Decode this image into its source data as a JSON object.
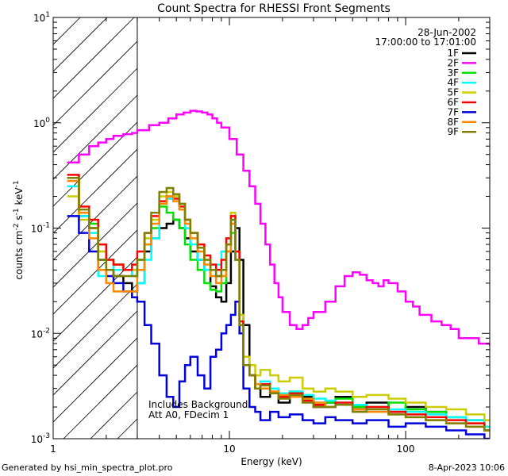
{
  "chart_data": {
    "type": "line",
    "title": "Count Spectra for RHESSI Front Segments",
    "xlabel": "Energy (keV)",
    "ylabel_parts": [
      "counts cm",
      "-2",
      " s",
      "-1",
      " keV",
      "-1"
    ],
    "xscale": "log",
    "yscale": "log",
    "xlim": [
      1,
      300
    ],
    "ylim": [
      0.001,
      10
    ],
    "x_tick_labels": [
      {
        "value": 1,
        "label": "1"
      },
      {
        "value": 10,
        "label": "10"
      },
      {
        "value": 100,
        "label": "100"
      }
    ],
    "y_tick_labels": [
      {
        "value": 0.001,
        "base": "10",
        "exp": "-3"
      },
      {
        "value": 0.01,
        "base": "10",
        "exp": "-2"
      },
      {
        "value": 0.1,
        "base": "10",
        "exp": "-1"
      },
      {
        "value": 1,
        "base": "10",
        "exp": "0"
      },
      {
        "value": 10,
        "base": "10",
        "exp": "1"
      }
    ],
    "hatched_region_keV": [
      1,
      3
    ],
    "date": "28-Jun-2002",
    "time_range": "17:00:00 to 17:01:00",
    "annotations": [
      "Includes Background",
      "Att A0, FDecim 1"
    ],
    "series": [
      {
        "name": "1F",
        "color": "#000000",
        "x": [
          1.2,
          1.4,
          1.6,
          1.8,
          2.0,
          2.2,
          2.5,
          2.8,
          3.0,
          3.3,
          3.6,
          4.0,
          4.4,
          4.8,
          5.2,
          5.6,
          6.0,
          6.6,
          7.2,
          7.8,
          8.4,
          9.0,
          9.6,
          10.2,
          10.8,
          11.4,
          12.0,
          13,
          14,
          15,
          17,
          19,
          22,
          26,
          30,
          35,
          40,
          50,
          60,
          80,
          100,
          130,
          170,
          220,
          280
        ],
        "values": [
          0.3,
          0.13,
          0.1,
          0.05,
          0.04,
          0.035,
          0.03,
          0.025,
          0.03,
          0.06,
          0.08,
          0.1,
          0.11,
          0.12,
          0.1,
          0.08,
          0.06,
          0.05,
          0.04,
          0.028,
          0.022,
          0.02,
          0.03,
          0.06,
          0.1,
          0.05,
          0.012,
          0.004,
          0.003,
          0.0025,
          0.003,
          0.0022,
          0.0028,
          0.0025,
          0.002,
          0.0022,
          0.0025,
          0.002,
          0.0022,
          0.0018,
          0.002,
          0.0018,
          0.0016,
          0.0015,
          0.0013
        ]
      },
      {
        "name": "2F",
        "color": "#ff00ff",
        "x": [
          1.2,
          1.4,
          1.6,
          1.8,
          2.0,
          2.2,
          2.5,
          2.8,
          3.0,
          3.5,
          4.0,
          4.5,
          5.0,
          5.5,
          6.0,
          6.5,
          7.0,
          7.5,
          8.0,
          8.5,
          9.0,
          10,
          11,
          12,
          13,
          14,
          15,
          16,
          17,
          18,
          19,
          20,
          22,
          24,
          26,
          28,
          30,
          35,
          40,
          45,
          50,
          55,
          60,
          65,
          70,
          75,
          80,
          90,
          100,
          110,
          120,
          140,
          160,
          180,
          200,
          230,
          260,
          300
        ],
        "values": [
          0.42,
          0.5,
          0.6,
          0.65,
          0.7,
          0.75,
          0.78,
          0.8,
          0.85,
          0.95,
          1.0,
          1.1,
          1.2,
          1.25,
          1.3,
          1.28,
          1.25,
          1.2,
          1.1,
          1.0,
          0.9,
          0.7,
          0.5,
          0.35,
          0.25,
          0.17,
          0.11,
          0.07,
          0.045,
          0.03,
          0.022,
          0.016,
          0.012,
          0.011,
          0.012,
          0.014,
          0.016,
          0.02,
          0.028,
          0.035,
          0.038,
          0.036,
          0.032,
          0.03,
          0.028,
          0.032,
          0.03,
          0.025,
          0.02,
          0.018,
          0.015,
          0.013,
          0.012,
          0.011,
          0.009,
          0.009,
          0.008,
          0.0078
        ]
      },
      {
        "name": "3F",
        "color": "#00e000",
        "x": [
          1.2,
          1.4,
          1.6,
          1.8,
          2.0,
          2.2,
          2.5,
          2.8,
          3.0,
          3.3,
          3.6,
          4.0,
          4.4,
          4.8,
          5.2,
          5.6,
          6.0,
          6.6,
          7.2,
          7.8,
          8.4,
          9.0,
          9.6,
          10.2,
          10.8,
          11.4,
          12.0,
          13,
          14,
          15,
          17,
          19,
          22,
          26,
          30,
          35,
          40,
          50,
          60,
          80,
          100,
          130,
          170,
          220,
          280
        ],
        "values": [
          0.3,
          0.14,
          0.11,
          0.06,
          0.05,
          0.045,
          0.04,
          0.035,
          0.05,
          0.07,
          0.1,
          0.16,
          0.14,
          0.12,
          0.1,
          0.07,
          0.05,
          0.04,
          0.03,
          0.026,
          0.025,
          0.03,
          0.06,
          0.09,
          0.05,
          0.012,
          0.005,
          0.004,
          0.003,
          0.0035,
          0.003,
          0.0026,
          0.0028,
          0.0024,
          0.0022,
          0.0022,
          0.0024,
          0.002,
          0.002,
          0.0022,
          0.0019,
          0.0018,
          0.0016,
          0.0014,
          0.0013
        ]
      },
      {
        "name": "4F",
        "color": "#00ffff",
        "x": [
          1.2,
          1.4,
          1.6,
          1.8,
          2.0,
          2.2,
          2.5,
          2.8,
          3.0,
          3.3,
          3.6,
          4.0,
          4.4,
          4.8,
          5.2,
          5.6,
          6.0,
          6.6,
          7.2,
          7.8,
          8.4,
          9.0,
          9.6,
          10.2,
          10.8,
          11.4,
          12.0,
          13,
          14,
          15,
          17,
          19,
          22,
          26,
          30,
          35,
          40,
          50,
          60,
          80,
          100,
          130,
          170,
          220,
          280
        ],
        "values": [
          0.25,
          0.13,
          0.09,
          0.035,
          0.05,
          0.04,
          0.04,
          0.035,
          0.03,
          0.05,
          0.08,
          0.17,
          0.19,
          0.2,
          0.15,
          0.1,
          0.07,
          0.05,
          0.04,
          0.035,
          0.045,
          0.06,
          0.08,
          0.12,
          0.05,
          0.012,
          0.005,
          0.004,
          0.003,
          0.0035,
          0.003,
          0.0027,
          0.0028,
          0.0026,
          0.0024,
          0.0023,
          0.0022,
          0.0021,
          0.002,
          0.0019,
          0.0018,
          0.0017,
          0.0016,
          0.0015,
          0.0013
        ]
      },
      {
        "name": "5F",
        "color": "#cccc00",
        "x": [
          1.2,
          1.4,
          1.6,
          1.8,
          2.0,
          2.2,
          2.5,
          2.8,
          3.0,
          3.3,
          3.6,
          4.0,
          4.4,
          4.8,
          5.2,
          5.6,
          6.0,
          6.6,
          7.2,
          7.8,
          8.4,
          9.0,
          9.6,
          10.2,
          10.8,
          11.4,
          12.0,
          13,
          14,
          15,
          17,
          19,
          22,
          26,
          30,
          35,
          40,
          50,
          60,
          80,
          100,
          130,
          170,
          220,
          280
        ],
        "values": [
          0.2,
          0.12,
          0.1,
          0.06,
          0.05,
          0.045,
          0.04,
          0.04,
          0.05,
          0.08,
          0.12,
          0.2,
          0.22,
          0.2,
          0.17,
          0.12,
          0.09,
          0.07,
          0.05,
          0.04,
          0.035,
          0.04,
          0.07,
          0.14,
          0.06,
          0.015,
          0.006,
          0.005,
          0.004,
          0.0045,
          0.004,
          0.0035,
          0.0038,
          0.003,
          0.0028,
          0.003,
          0.0028,
          0.0025,
          0.0026,
          0.0024,
          0.0022,
          0.002,
          0.0019,
          0.0017,
          0.0015
        ]
      },
      {
        "name": "6F",
        "color": "#ff0000",
        "x": [
          1.2,
          1.4,
          1.6,
          1.8,
          2.0,
          2.2,
          2.5,
          2.8,
          3.0,
          3.3,
          3.6,
          4.0,
          4.4,
          4.8,
          5.2,
          5.6,
          6.0,
          6.6,
          7.2,
          7.8,
          8.4,
          9.0,
          9.6,
          10.2,
          10.8,
          11.4,
          12.0,
          13,
          14,
          15,
          17,
          19,
          22,
          26,
          30,
          35,
          40,
          50,
          60,
          80,
          100,
          130,
          170,
          220,
          280
        ],
        "values": [
          0.32,
          0.16,
          0.12,
          0.07,
          0.05,
          0.045,
          0.04,
          0.045,
          0.06,
          0.09,
          0.13,
          0.18,
          0.2,
          0.19,
          0.16,
          0.12,
          0.09,
          0.07,
          0.055,
          0.045,
          0.04,
          0.05,
          0.08,
          0.13,
          0.06,
          0.013,
          0.005,
          0.004,
          0.003,
          0.0033,
          0.0028,
          0.0025,
          0.0027,
          0.0023,
          0.0021,
          0.002,
          0.0022,
          0.0019,
          0.002,
          0.0018,
          0.0017,
          0.0016,
          0.0015,
          0.0014,
          0.0012
        ]
      },
      {
        "name": "7F",
        "color": "#0000dd",
        "x": [
          1.2,
          1.4,
          1.6,
          1.8,
          2.0,
          2.2,
          2.5,
          2.8,
          3.0,
          3.3,
          3.6,
          4.0,
          4.4,
          4.8,
          5.2,
          5.6,
          6.0,
          6.6,
          7.2,
          7.8,
          8.4,
          9.0,
          9.6,
          10.2,
          10.8,
          11.4,
          12.0,
          13,
          14,
          15,
          17,
          19,
          22,
          26,
          30,
          35,
          40,
          50,
          60,
          80,
          100,
          130,
          170,
          220,
          280
        ],
        "values": [
          0.13,
          0.09,
          0.06,
          0.04,
          0.035,
          0.03,
          0.025,
          0.022,
          0.02,
          0.012,
          0.008,
          0.004,
          0.0025,
          0.002,
          0.0035,
          0.005,
          0.006,
          0.004,
          0.003,
          0.006,
          0.007,
          0.01,
          0.012,
          0.015,
          0.02,
          0.01,
          0.003,
          0.002,
          0.0018,
          0.0015,
          0.0018,
          0.0016,
          0.0017,
          0.0015,
          0.0014,
          0.0016,
          0.0015,
          0.0014,
          0.0015,
          0.0013,
          0.0014,
          0.0013,
          0.0012,
          0.0011,
          0.001
        ]
      },
      {
        "name": "8F",
        "color": "#ff8800",
        "x": [
          1.2,
          1.4,
          1.6,
          1.8,
          2.0,
          2.2,
          2.5,
          2.8,
          3.0,
          3.3,
          3.6,
          4.0,
          4.4,
          4.8,
          5.2,
          5.6,
          6.0,
          6.6,
          7.2,
          7.8,
          8.4,
          9.0,
          9.6,
          10.2,
          10.8,
          11.4,
          12.0,
          13,
          14,
          15,
          17,
          19,
          22,
          26,
          30,
          35,
          40,
          50,
          60,
          80,
          100,
          130,
          170,
          220,
          280
        ],
        "values": [
          0.28,
          0.14,
          0.08,
          0.04,
          0.03,
          0.025,
          0.025,
          0.025,
          0.04,
          0.07,
          0.11,
          0.17,
          0.2,
          0.18,
          0.15,
          0.11,
          0.08,
          0.06,
          0.045,
          0.035,
          0.03,
          0.035,
          0.06,
          0.11,
          0.05,
          0.012,
          0.005,
          0.004,
          0.0033,
          0.003,
          0.0028,
          0.0026,
          0.0025,
          0.0024,
          0.0022,
          0.002,
          0.0021,
          0.0019,
          0.0018,
          0.0017,
          0.0016,
          0.0015,
          0.0014,
          0.0013,
          0.0012
        ]
      },
      {
        "name": "9F",
        "color": "#808000",
        "x": [
          1.2,
          1.4,
          1.6,
          1.8,
          2.0,
          2.2,
          2.5,
          2.8,
          3.0,
          3.3,
          3.6,
          4.0,
          4.4,
          4.8,
          5.2,
          5.6,
          6.0,
          6.6,
          7.2,
          7.8,
          8.4,
          9.0,
          9.6,
          10.2,
          10.8,
          11.4,
          12.0,
          13,
          14,
          15,
          17,
          19,
          22,
          26,
          30,
          35,
          40,
          50,
          60,
          80,
          100,
          130,
          170,
          220,
          280
        ],
        "values": [
          0.3,
          0.15,
          0.1,
          0.05,
          0.04,
          0.035,
          0.035,
          0.035,
          0.05,
          0.09,
          0.14,
          0.22,
          0.24,
          0.21,
          0.17,
          0.12,
          0.09,
          0.065,
          0.05,
          0.04,
          0.035,
          0.04,
          0.07,
          0.12,
          0.05,
          0.012,
          0.005,
          0.004,
          0.003,
          0.0032,
          0.0027,
          0.0024,
          0.0026,
          0.0022,
          0.002,
          0.002,
          0.0021,
          0.0018,
          0.0019,
          0.0017,
          0.0016,
          0.0015,
          0.0014,
          0.0013,
          0.0012
        ]
      }
    ]
  },
  "footer": {
    "generated_by": "Generated by hsi_min_spectra_plot.pro",
    "timestamp": "8-Apr-2023 10:06"
  }
}
